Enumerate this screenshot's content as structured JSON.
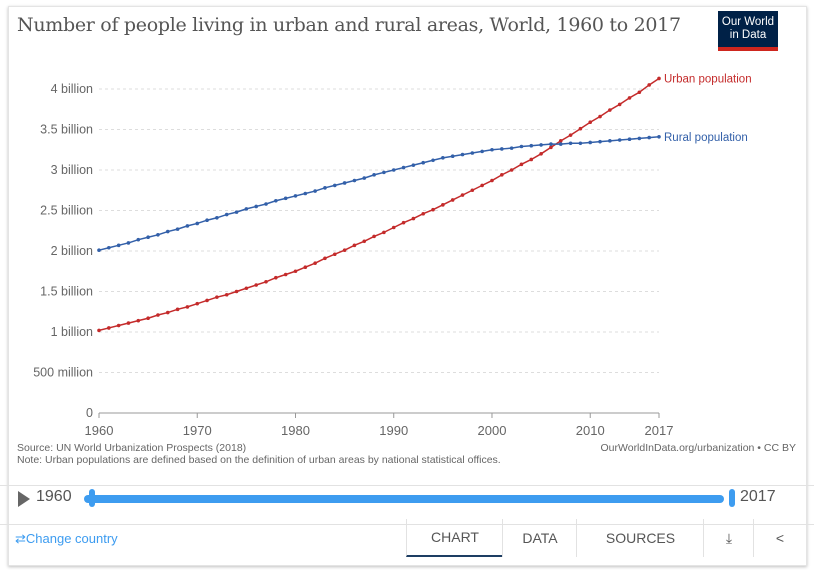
{
  "title": "Number of people living in urban and rural areas, World, 1960 to 2017",
  "logo": {
    "line1": "Our World",
    "line2": "in Data"
  },
  "footer": {
    "source": "Source: UN World Urbanization Prospects (2018)",
    "note": "Note: Urban populations are defined based on the definition of urban areas by national statistical offices.",
    "url": "OurWorldInData.org/urbanization • CC BY"
  },
  "timeline": {
    "start": "1960",
    "end": "2017"
  },
  "controls": {
    "change_country": "Change country",
    "tabs": [
      "CHART",
      "DATA",
      "SOURCES"
    ],
    "active_tab": "CHART",
    "download_icon": "download-icon",
    "share_icon": "share-icon"
  },
  "chart_data": {
    "type": "line",
    "title": "Number of people living in urban and rural areas, World, 1960 to 2017",
    "ylim": [
      0,
      4000000000
    ],
    "yticks": [
      {
        "v": 0,
        "label": "0"
      },
      {
        "v": 500000000,
        "label": "500 million"
      },
      {
        "v": 1000000000,
        "label": "1 billion"
      },
      {
        "v": 1500000000,
        "label": "1.5 billion"
      },
      {
        "v": 2000000000,
        "label": "2 billion"
      },
      {
        "v": 2500000000,
        "label": "2.5 billion"
      },
      {
        "v": 3000000000,
        "label": "3 billion"
      },
      {
        "v": 3500000000,
        "label": "3.5 billion"
      },
      {
        "v": 4000000000,
        "label": "4 billion"
      }
    ],
    "xticks": [
      "1960",
      "1970",
      "1980",
      "1990",
      "2000",
      "2010",
      "2017"
    ],
    "xlim": [
      1960,
      2017
    ],
    "grid": "horizontal dashed",
    "legend": "inline-right",
    "x_start": 1960,
    "series": [
      {
        "name": "Urban population",
        "color": "#c42b2b",
        "unit": "billion",
        "values": [
          1.02,
          1.05,
          1.08,
          1.11,
          1.14,
          1.17,
          1.21,
          1.24,
          1.28,
          1.31,
          1.35,
          1.39,
          1.43,
          1.46,
          1.5,
          1.54,
          1.58,
          1.62,
          1.67,
          1.71,
          1.75,
          1.8,
          1.85,
          1.91,
          1.96,
          2.01,
          2.07,
          2.12,
          2.18,
          2.23,
          2.29,
          2.35,
          2.4,
          2.46,
          2.51,
          2.57,
          2.63,
          2.69,
          2.75,
          2.81,
          2.87,
          2.94,
          3.0,
          3.07,
          3.13,
          3.2,
          3.28,
          3.36,
          3.43,
          3.51,
          3.59,
          3.66,
          3.74,
          3.81,
          3.89,
          3.96,
          4.05,
          4.13
        ]
      },
      {
        "name": "Rural population",
        "color": "#3360a9",
        "unit": "billion",
        "values": [
          2.01,
          2.04,
          2.07,
          2.1,
          2.14,
          2.17,
          2.2,
          2.24,
          2.27,
          2.31,
          2.34,
          2.38,
          2.41,
          2.45,
          2.48,
          2.52,
          2.55,
          2.58,
          2.62,
          2.65,
          2.68,
          2.71,
          2.74,
          2.78,
          2.81,
          2.84,
          2.87,
          2.9,
          2.94,
          2.97,
          3.0,
          3.03,
          3.06,
          3.09,
          3.12,
          3.15,
          3.17,
          3.19,
          3.21,
          3.23,
          3.25,
          3.26,
          3.27,
          3.29,
          3.3,
          3.31,
          3.32,
          3.32,
          3.33,
          3.33,
          3.34,
          3.35,
          3.36,
          3.37,
          3.38,
          3.39,
          3.4,
          3.41
        ]
      }
    ]
  }
}
